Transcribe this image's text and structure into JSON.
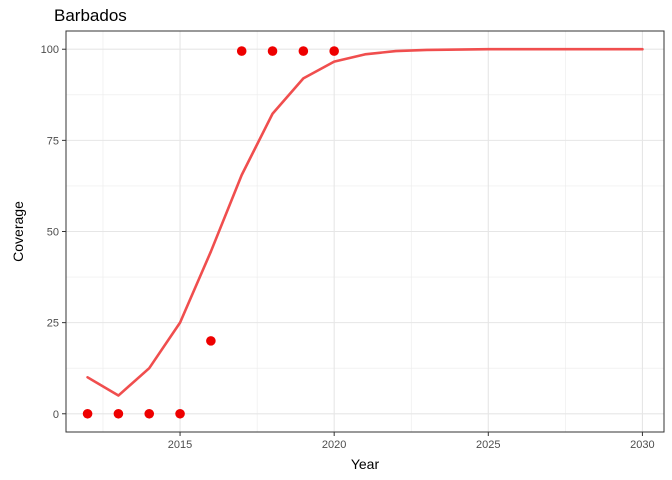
{
  "chart_data": {
    "type": "line",
    "title": "Barbados",
    "xlabel": "Year",
    "ylabel": "Coverage",
    "xlim": [
      2011.3,
      2030.7
    ],
    "ylim": [
      -5,
      105
    ],
    "x_ticks": [
      2015,
      2020,
      2025,
      2030
    ],
    "x_tick_labels": [
      "2015",
      "2020",
      "2025",
      "2030"
    ],
    "y_ticks": [
      0,
      25,
      50,
      75,
      100
    ],
    "y_tick_labels": [
      "0",
      "25",
      "50",
      "75",
      "100"
    ],
    "grid": true,
    "legend": "none",
    "series": [
      {
        "type": "line",
        "color": "#f04e4e",
        "x": [
          2012,
          2013,
          2014,
          2015,
          2016,
          2017,
          2018,
          2019,
          2020,
          2021,
          2022,
          2023,
          2024,
          2025,
          2026,
          2027,
          2028,
          2029,
          2030
        ],
        "values": [
          10,
          5,
          12.5,
          25,
          44.5,
          65.5,
          82.3,
          92,
          96.6,
          98.6,
          99.5,
          99.8,
          99.9,
          100,
          100,
          100,
          100,
          100,
          100
        ]
      },
      {
        "type": "scatter",
        "color": "#ee0000",
        "x": [
          2012,
          2013,
          2014,
          2015,
          2016,
          2017,
          2018,
          2019,
          2020
        ],
        "values": [
          0,
          0,
          0,
          0,
          20,
          99.5,
          99.5,
          99.5,
          99.5
        ]
      }
    ]
  }
}
